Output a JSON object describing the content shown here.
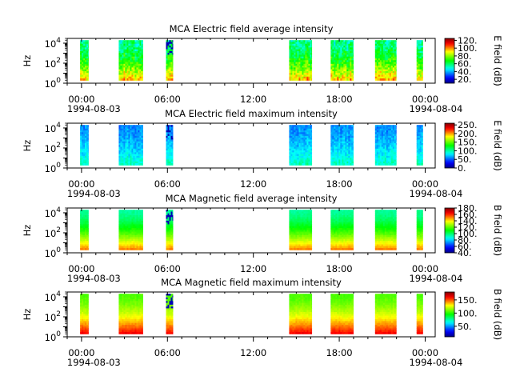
{
  "chart_data": [
    {
      "type": "heatmap",
      "title": "MCA  Electric field average intensity",
      "ylabel": "Hz",
      "yscale": "log",
      "ylim": [
        1,
        30000
      ],
      "y_tick_labels": [
        {
          "base": "10",
          "exp": "0"
        },
        {
          "base": "10",
          "exp": "2"
        },
        {
          "base": "10",
          "exp": "4"
        }
      ],
      "x_tick_labels": [
        "00:00",
        "06:00",
        "12:00",
        "18:00",
        "00:00"
      ],
      "date_labels": [
        "1994-08-03",
        "1994-08-04"
      ],
      "colorbar_label": "E field (dB)",
      "colorbar_range": [
        10,
        125
      ],
      "colorbar_ticks": [
        "20.",
        "40.",
        "60.",
        "80.",
        "100.",
        "120."
      ],
      "colorbar_tick_values": [
        20,
        40,
        60,
        80,
        100,
        120
      ],
      "data_intervals_hours": [
        [
          -0.1,
          0.5
        ],
        [
          2.6,
          4.3
        ],
        [
          5.9,
          6.4
        ],
        [
          14.5,
          16.1
        ],
        [
          17.4,
          19.0
        ],
        [
          20.5,
          22.0
        ],
        [
          23.4,
          23.85
        ]
      ],
      "frequency_range_hz": [
        3,
        20000
      ],
      "intensity_low_freq_db": 95,
      "intensity_high_freq_db": 55,
      "variability_db": 18
    },
    {
      "type": "heatmap",
      "title": "MCA  Electric field maximum intensity",
      "ylabel": "Hz",
      "yscale": "log",
      "ylim": [
        1,
        30000
      ],
      "y_tick_labels": [
        {
          "base": "10",
          "exp": "0"
        },
        {
          "base": "10",
          "exp": "2"
        },
        {
          "base": "10",
          "exp": "4"
        }
      ],
      "x_tick_labels": [
        "00:00",
        "06:00",
        "12:00",
        "18:00",
        "00:00"
      ],
      "date_labels": [
        "1994-08-03",
        "1994-08-04"
      ],
      "colorbar_label": "E field (dB)",
      "colorbar_range": [
        0,
        260
      ],
      "colorbar_ticks": [
        "0.",
        "50.",
        "100.",
        "150.",
        "200.",
        "250."
      ],
      "colorbar_tick_values": [
        0,
        50,
        100,
        150,
        200,
        250
      ],
      "data_intervals_hours": [
        [
          -0.1,
          0.5
        ],
        [
          2.6,
          4.3
        ],
        [
          5.9,
          6.4
        ],
        [
          14.5,
          16.1
        ],
        [
          17.4,
          19.0
        ],
        [
          20.5,
          22.0
        ],
        [
          23.4,
          23.85
        ]
      ],
      "frequency_range_hz": [
        3,
        20000
      ],
      "intensity_low_freq_db": 95,
      "intensity_high_freq_db": 60,
      "variability_db": 20
    },
    {
      "type": "heatmap",
      "title": "MCA  Magnetic field average intensity",
      "ylabel": "Hz",
      "yscale": "log",
      "ylim": [
        1,
        30000
      ],
      "y_tick_labels": [
        {
          "base": "10",
          "exp": "0"
        },
        {
          "base": "10",
          "exp": "2"
        },
        {
          "base": "10",
          "exp": "4"
        }
      ],
      "x_tick_labels": [
        "00:00",
        "06:00",
        "12:00",
        "18:00",
        "00:00"
      ],
      "date_labels": [
        "1994-08-03",
        "1994-08-04"
      ],
      "colorbar_label": "B field (dB)",
      "colorbar_range": [
        40,
        180
      ],
      "colorbar_ticks": [
        "40.",
        "60.",
        "80.",
        "100.",
        "120.",
        "140.",
        "160.",
        "180."
      ],
      "colorbar_tick_values": [
        40,
        60,
        80,
        100,
        120,
        140,
        160,
        180
      ],
      "data_intervals_hours": [
        [
          -0.1,
          0.5
        ],
        [
          2.6,
          4.3
        ],
        [
          5.9,
          6.4
        ],
        [
          14.5,
          16.1
        ],
        [
          17.4,
          19.0
        ],
        [
          20.5,
          22.0
        ],
        [
          23.4,
          23.85
        ]
      ],
      "frequency_range_hz": [
        3,
        20000
      ],
      "intensity_low_freq_db": 150,
      "intensity_high_freq_db": 95,
      "variability_db": 4
    },
    {
      "type": "heatmap",
      "title": "MCA  Magnetic field maximum intensity",
      "ylabel": "Hz",
      "yscale": "log",
      "ylim": [
        1,
        30000
      ],
      "y_tick_labels": [
        {
          "base": "10",
          "exp": "0"
        },
        {
          "base": "10",
          "exp": "2"
        },
        {
          "base": "10",
          "exp": "4"
        }
      ],
      "x_tick_labels": [
        "00:00",
        "06:00",
        "12:00",
        "18:00",
        "00:00"
      ],
      "date_labels": [
        "1994-08-03",
        "1994-08-04"
      ],
      "colorbar_label": "B field (dB)",
      "colorbar_range": [
        10,
        180
      ],
      "colorbar_ticks": [
        "50.",
        "100.",
        "150."
      ],
      "colorbar_tick_values": [
        50,
        100,
        150
      ],
      "data_intervals_hours": [
        [
          -0.1,
          0.5
        ],
        [
          2.6,
          4.3
        ],
        [
          5.9,
          6.4
        ],
        [
          14.5,
          16.1
        ],
        [
          17.4,
          19.0
        ],
        [
          20.5,
          22.0
        ],
        [
          23.4,
          23.85
        ]
      ],
      "frequency_range_hz": [
        3,
        20000
      ],
      "intensity_low_freq_db": 160,
      "intensity_high_freq_db": 105,
      "variability_db": 5
    }
  ],
  "x_axis": {
    "unit": "hours",
    "range_hours": [
      -1,
      24.7
    ],
    "major_tick_hours": [
      0,
      6,
      12,
      18,
      24
    ],
    "minor_step_hours": 1
  }
}
